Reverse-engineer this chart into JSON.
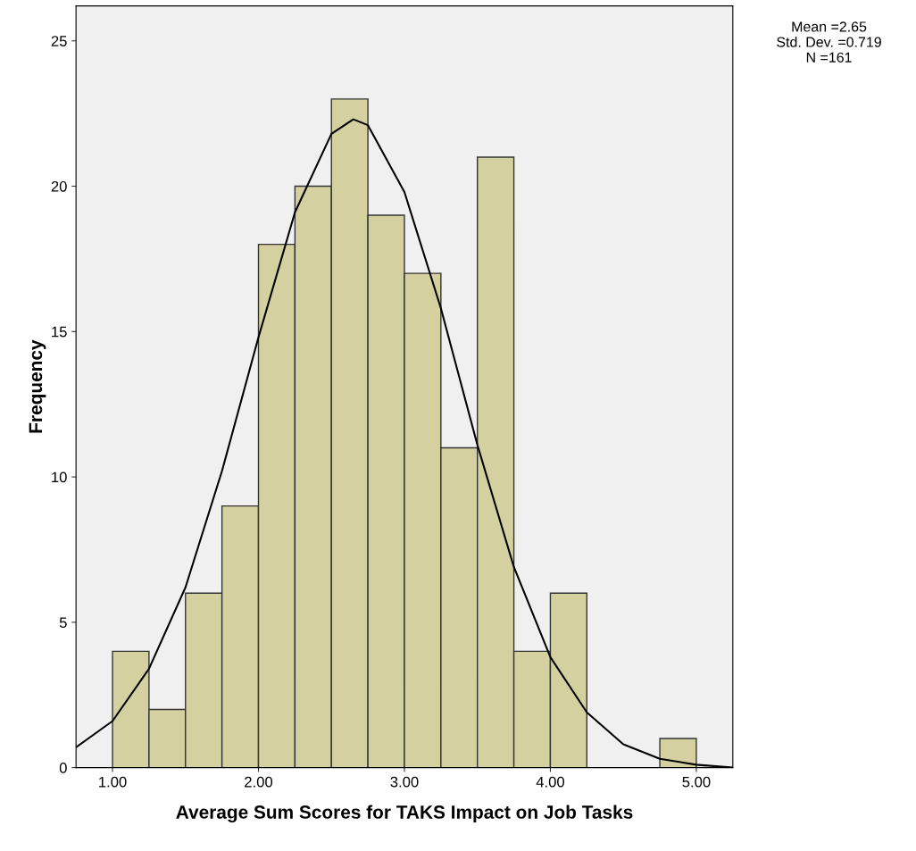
{
  "chart_data": {
    "type": "histogram",
    "xlabel": "Average Sum Scores for TAKS Impact on Job Tasks",
    "ylabel": "Frequency",
    "bins": [
      1.0,
      1.25,
      1.5,
      1.75,
      2.0,
      2.25,
      2.5,
      2.75,
      3.0,
      3.25,
      3.5,
      3.75,
      4.0,
      4.25,
      4.5,
      4.75,
      5.0
    ],
    "series": [
      {
        "color": "#d4d0a0",
        "values": [
          4,
          2,
          6,
          9,
          18,
          20,
          23,
          19,
          17,
          11,
          21,
          4,
          6,
          0,
          0,
          1
        ]
      },
      {
        "type": "line",
        "color": "#000000",
        "x": [
          0.75,
          1.0,
          1.25,
          1.5,
          1.75,
          2.0,
          2.25,
          2.5,
          2.65,
          2.75,
          3.0,
          3.25,
          3.5,
          3.75,
          4.0,
          4.25,
          4.5,
          4.75,
          5.0,
          5.25
        ],
        "values": [
          0.7,
          1.6,
          3.4,
          6.2,
          10.2,
          14.8,
          19.1,
          21.8,
          22.3,
          22.1,
          19.8,
          15.8,
          11.1,
          6.9,
          3.8,
          1.9,
          0.8,
          0.3,
          0.1,
          0.0
        ]
      }
    ],
    "xlim": [
      0.75,
      5.25
    ],
    "ylim": [
      0,
      26.2
    ],
    "xticks": [
      {
        "value": 1,
        "label": "1.00"
      },
      {
        "value": 2,
        "label": "2.00"
      },
      {
        "value": 3,
        "label": "3.00"
      },
      {
        "value": 4,
        "label": "4.00"
      },
      {
        "value": 5,
        "label": "5.00"
      }
    ],
    "yticks": [
      0,
      5,
      10,
      15,
      20,
      25
    ],
    "grid": false,
    "marker": "none",
    "line_style": "solid",
    "annotations": [
      "Mean =2.65\nStd. Dev. =0.719\nN =161"
    ]
  }
}
